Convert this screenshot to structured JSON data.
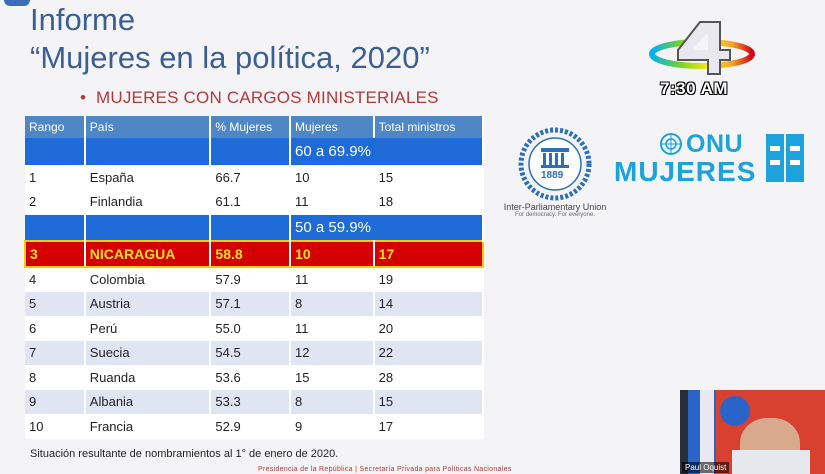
{
  "slide": {
    "title_line1": "Informe",
    "title_line2": "“Mujeres en la política, 2020”",
    "subtitle": "MUJERES CON CARGOS MINISTERIALES",
    "footnote": "Situación resultante de nombramientos al 1° de enero de 2020.",
    "presidency_note": "Presidencia de la República | Secretaría Privada para Políticas Nacionales"
  },
  "table": {
    "headers": [
      "Rango",
      "País",
      "% Mujeres",
      "Mujeres",
      "Total ministros"
    ],
    "range_60": "60 a 69.9%",
    "range_50": "50 a 59.9%",
    "rows": [
      {
        "rank": "1",
        "country": "España",
        "pct": "66.7",
        "women": "10",
        "total": "15"
      },
      {
        "rank": "2",
        "country": "Finlandia",
        "pct": "61.1",
        "women": "11",
        "total": "18"
      },
      {
        "rank": "3",
        "country": "NICARAGUA",
        "pct": "58.8",
        "women": "10",
        "total": "17"
      },
      {
        "rank": "4",
        "country": "Colombia",
        "pct": "57.9",
        "women": "11",
        "total": "19"
      },
      {
        "rank": "5",
        "country": "Austria",
        "pct": "57.1",
        "women": "8",
        "total": "14"
      },
      {
        "rank": "6",
        "country": "Perú",
        "pct": "55.0",
        "women": "11",
        "total": "20"
      },
      {
        "rank": "7",
        "country": "Suecia",
        "pct": "54.5",
        "women": "12",
        "total": "22"
      },
      {
        "rank": "8",
        "country": "Ruanda",
        "pct": "53.6",
        "women": "15",
        "total": "28"
      },
      {
        "rank": "9",
        "country": "Albania",
        "pct": "53.3",
        "women": "8",
        "total": "15"
      },
      {
        "rank": "10",
        "country": "Francia",
        "pct": "52.9",
        "women": "9",
        "total": "17"
      }
    ]
  },
  "logos": {
    "ipu_year": "1889",
    "ipu_name": "Inter-Parliamentary Union",
    "ipu_tagline": "For democracy. For everyone.",
    "onu_word1": "ONU",
    "onu_word2": "MUJERES"
  },
  "broadcast": {
    "time": "7:30 AM",
    "pip_label": "Paul Oquist"
  },
  "colors": {
    "header_blue": "#4f86c6",
    "range_blue": "#1e6ad6",
    "highlight_red": "#d40000",
    "highlight_text": "#f7e01e",
    "title_blue": "#3b5f93",
    "subtitle_red": "#b23a3a",
    "onu_blue": "#1ca2dc"
  }
}
